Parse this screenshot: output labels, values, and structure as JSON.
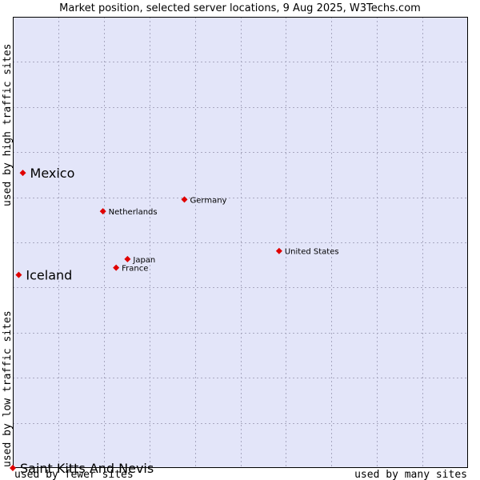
{
  "chart_data": {
    "type": "scatter",
    "title": "Market position, selected server locations, 9 Aug 2025, W3Techs.com",
    "xlabel_left": "used by fewer sites",
    "xlabel_right": "used by many sites",
    "ylabel_bottom": "used by low traffic sites",
    "ylabel_top": "used by high traffic sites",
    "xlim": [
      0,
      100
    ],
    "ylim": [
      0,
      100
    ],
    "grid": true,
    "series": [
      {
        "name": "server locations",
        "points": [
          {
            "label": "Mexico",
            "x": 2.2,
            "y": 65.4,
            "emphasis": "large"
          },
          {
            "label": "Iceland",
            "x": 1.3,
            "y": 42.8,
            "emphasis": "large"
          },
          {
            "label": "Saint Kitts And Nevis",
            "x": 0.0,
            "y": 0.0,
            "emphasis": "large"
          },
          {
            "label": "Netherlands",
            "x": 19.8,
            "y": 56.9,
            "emphasis": "small"
          },
          {
            "label": "Germany",
            "x": 37.7,
            "y": 59.5,
            "emphasis": "small"
          },
          {
            "label": "Japan",
            "x": 25.2,
            "y": 46.3,
            "emphasis": "small"
          },
          {
            "label": "France",
            "x": 22.7,
            "y": 44.4,
            "emphasis": "small"
          },
          {
            "label": "United States",
            "x": 58.5,
            "y": 48.1,
            "emphasis": "small"
          }
        ]
      }
    ],
    "colors": {
      "plot_bg": "#e3e5f9",
      "grid": "#a8a8c0",
      "frame": "#000000",
      "marker": "#e00000"
    }
  }
}
